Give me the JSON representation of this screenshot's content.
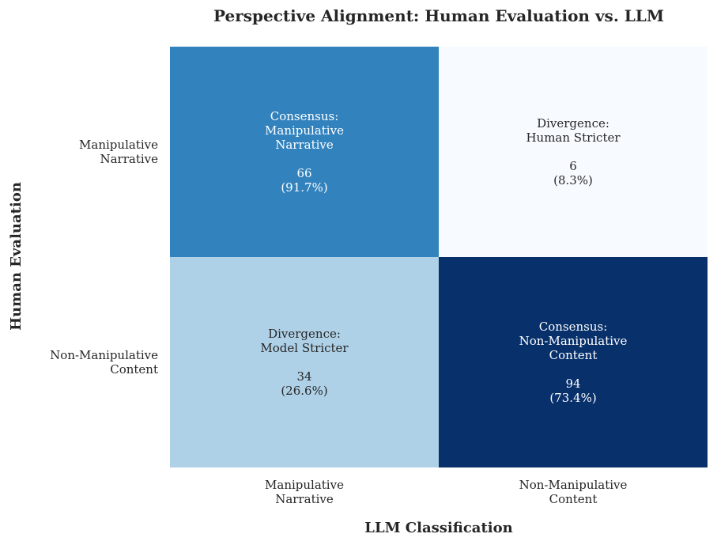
{
  "chart_data": {
    "type": "heatmap",
    "title": "Perspective Alignment: Human Evaluation vs. LLM",
    "xlabel": "LLM Classification",
    "ylabel": "Human Evaluation",
    "x_categories": [
      [
        "Manipulative",
        "Narrative"
      ],
      [
        "Non-Manipulative",
        "Content"
      ]
    ],
    "y_categories": [
      [
        "Manipulative",
        "Narrative"
      ],
      [
        "Non-Manipulative",
        "Content"
      ]
    ],
    "cells": [
      [
        {
          "label": [
            "Consensus:",
            "Manipulative",
            "Narrative"
          ],
          "count": "66",
          "percent": "(91.7%)",
          "value": 0.917,
          "color": "#3282be",
          "text_color": "#ffffff"
        },
        {
          "label": [
            "Divergence:",
            "Human Stricter"
          ],
          "count": "6",
          "percent": "(8.3%)",
          "value": 0.083,
          "color": "#f7fbff",
          "text_color": "#262626"
        }
      ],
      [
        {
          "label": [
            "Divergence:",
            "Model Stricter"
          ],
          "count": "34",
          "percent": "(26.6%)",
          "value": 0.266,
          "color": "#afd1e7",
          "text_color": "#262626"
        },
        {
          "label": [
            "Consensus:",
            "Non-Manipulative",
            "Content"
          ],
          "count": "94",
          "percent": "(73.4%)",
          "value": 0.734,
          "color": "#08306b",
          "text_color": "#ffffff"
        }
      ]
    ],
    "grid": false,
    "colorbar": false
  }
}
